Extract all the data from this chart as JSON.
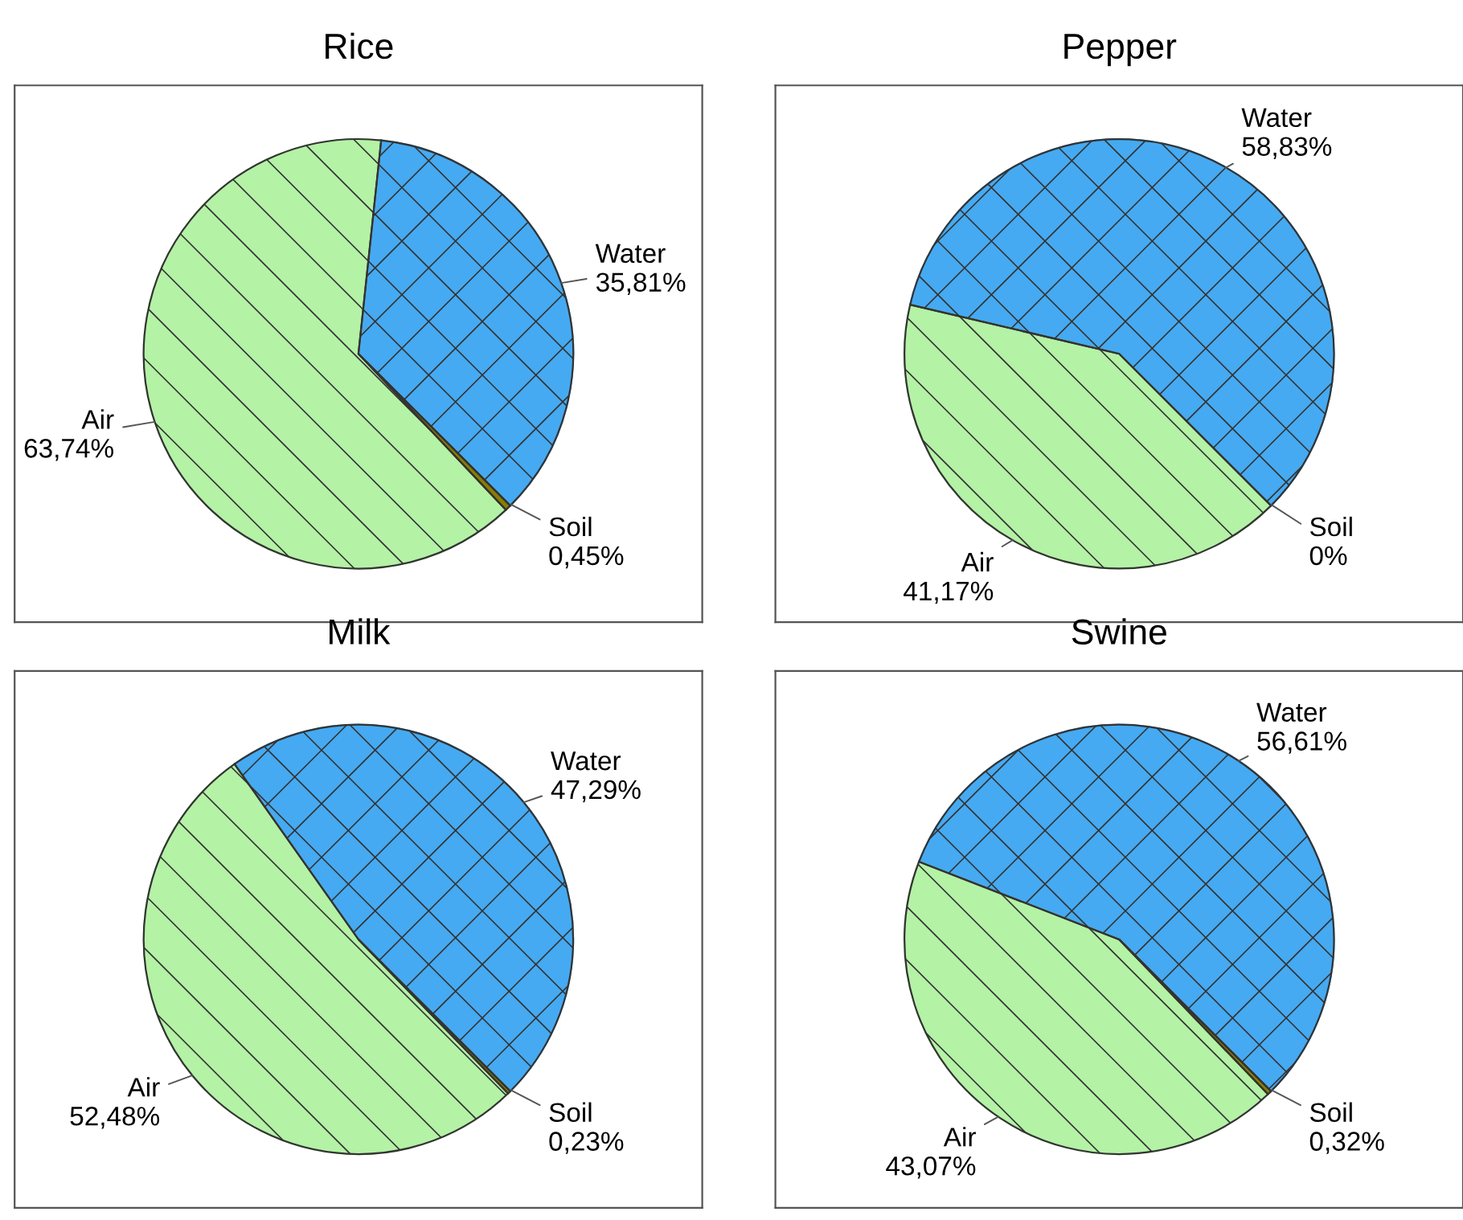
{
  "chart_data": [
    {
      "type": "pie",
      "title": "Rice",
      "categories": [
        "Water",
        "Air",
        "Soil"
      ],
      "values": [
        35.81,
        63.74,
        0.45
      ],
      "value_labels": [
        "35,81%",
        "63,74%",
        "0,45%"
      ],
      "colors": [
        "#45aaf2",
        "#b4f2a6",
        "#8a7d00"
      ]
    },
    {
      "type": "pie",
      "title": "Pepper",
      "categories": [
        "Water",
        "Air",
        "Soil"
      ],
      "values": [
        58.83,
        41.17,
        0
      ],
      "value_labels": [
        "58,83%",
        "41,17%",
        "0%"
      ],
      "colors": [
        "#45aaf2",
        "#b4f2a6",
        "#8a7d00"
      ]
    },
    {
      "type": "pie",
      "title": "Milk",
      "categories": [
        "Water",
        "Air",
        "Soil"
      ],
      "values": [
        47.29,
        52.48,
        0.23
      ],
      "value_labels": [
        "47,29%",
        "52,48%",
        "0,23%"
      ],
      "colors": [
        "#45aaf2",
        "#b4f2a6",
        "#8a7d00"
      ]
    },
    {
      "type": "pie",
      "title": "Swine",
      "categories": [
        "Water",
        "Air",
        "Soil"
      ],
      "values": [
        56.61,
        43.07,
        0.32
      ],
      "value_labels": [
        "56,61%",
        "43,07%",
        "0,32%"
      ],
      "colors": [
        "#45aaf2",
        "#b4f2a6",
        "#8a7d00"
      ]
    }
  ]
}
